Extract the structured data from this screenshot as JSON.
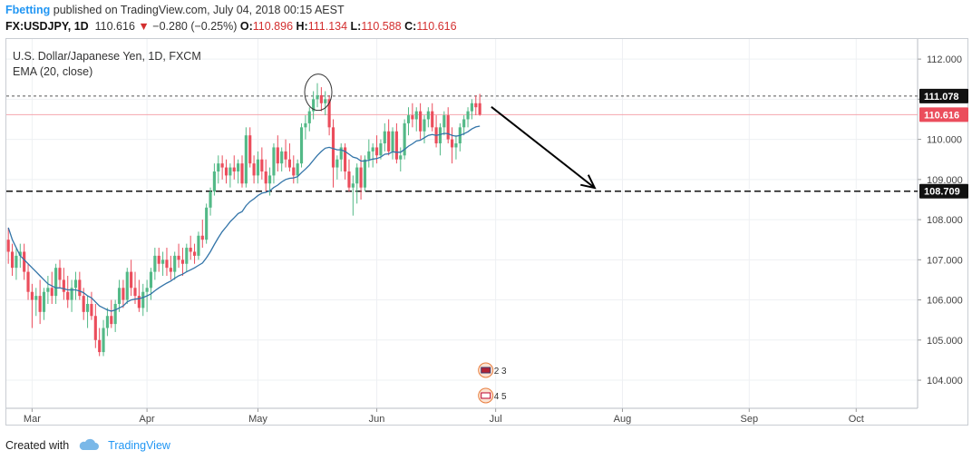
{
  "header": {
    "author": "Fbetting",
    "published": "published on TradingView.com, July 04, 2018 00:15 AEST"
  },
  "quote": {
    "symbol": "FX:USDJPY, 1D",
    "last": "110.616",
    "change_arrow": "▼",
    "change": "−0.280 (−0.25%)",
    "open_label": "O:",
    "open": "110.896",
    "high_label": "H:",
    "high": "111.134",
    "low_label": "L:",
    "low": "110.588",
    "close_label": "C:",
    "close": "110.616"
  },
  "legend": {
    "title": "U.S. Dollar/Japanese Yen, 1D, FXCM",
    "indicator": "EMA (20, close)"
  },
  "footer": {
    "created_with": "Created with",
    "brand": "TradingView",
    "brand_icon": "cloud-icon"
  },
  "colors": {
    "up": "#53b987",
    "down": "#eb4d5c",
    "ema": "#3274a8",
    "resistance": "#555555",
    "last_price_line": "#f4a6ae",
    "last_price_badge": "#eb4d5c",
    "axis_badge_dark": "#111111",
    "event_badge": "#e87d3e"
  },
  "chart_data": {
    "type": "candlestick",
    "symbol": "USDJPY",
    "timeframe": "1D",
    "ylim": [
      103.3,
      112.5
    ],
    "y_ticks": [
      104.0,
      105.0,
      106.0,
      107.0,
      108.0,
      109.0,
      110.0,
      111.0,
      112.0
    ],
    "y_tick_labels": [
      "104.000",
      "105.000",
      "106.000",
      "107.000",
      "108.000",
      "109.000",
      "110.000",
      "111.000",
      "112.000"
    ],
    "x_tick_labels": [
      "Mar",
      "Apr",
      "May",
      "Jun",
      "Jul",
      "Aug",
      "Sep",
      "Oct"
    ],
    "x_tick_bar_index": [
      6,
      35,
      63,
      93,
      123,
      155,
      187,
      214
    ],
    "bar_count_total": 230,
    "candles": [
      [
        107.5,
        107.8,
        106.9,
        107.2
      ],
      [
        107.2,
        107.4,
        106.6,
        106.8
      ],
      [
        106.8,
        107.3,
        106.5,
        107.1
      ],
      [
        107.1,
        107.4,
        106.8,
        107.2
      ],
      [
        107.2,
        107.4,
        106.5,
        106.7
      ],
      [
        106.7,
        106.9,
        106.0,
        106.2
      ],
      [
        106.2,
        106.4,
        105.3,
        106.0
      ],
      [
        106.0,
        106.3,
        105.6,
        106.1
      ],
      [
        106.1,
        106.5,
        105.4,
        105.7
      ],
      [
        105.7,
        106.3,
        105.5,
        106.2
      ],
      [
        106.2,
        106.6,
        105.9,
        106.3
      ],
      [
        106.3,
        106.7,
        105.9,
        106.1
      ],
      [
        106.1,
        106.9,
        105.9,
        106.8
      ],
      [
        106.8,
        107.0,
        106.3,
        106.5
      ],
      [
        106.5,
        106.8,
        106.0,
        106.2
      ],
      [
        106.2,
        106.6,
        105.8,
        106.0
      ],
      [
        106.0,
        106.5,
        105.7,
        106.3
      ],
      [
        106.3,
        106.7,
        106.0,
        106.5
      ],
      [
        106.5,
        106.7,
        106.0,
        106.1
      ],
      [
        106.1,
        106.3,
        105.5,
        105.7
      ],
      [
        105.7,
        106.1,
        105.3,
        105.9
      ],
      [
        105.9,
        106.2,
        105.5,
        105.6
      ],
      [
        105.6,
        105.9,
        104.8,
        105.0
      ],
      [
        105.0,
        105.3,
        104.6,
        104.7
      ],
      [
        104.7,
        105.5,
        104.6,
        105.3
      ],
      [
        105.3,
        105.8,
        105.1,
        105.6
      ],
      [
        105.6,
        106.0,
        105.3,
        105.4
      ],
      [
        105.4,
        106.0,
        105.2,
        105.9
      ],
      [
        105.9,
        106.5,
        105.7,
        106.3
      ],
      [
        106.3,
        106.5,
        105.8,
        106.0
      ],
      [
        106.0,
        106.8,
        105.9,
        106.7
      ],
      [
        106.7,
        107.0,
        106.1,
        106.3
      ],
      [
        106.3,
        106.7,
        105.9,
        106.1
      ],
      [
        106.1,
        106.5,
        105.7,
        105.8
      ],
      [
        105.8,
        106.4,
        105.6,
        106.2
      ],
      [
        106.2,
        106.5,
        105.7,
        106.3
      ],
      [
        106.3,
        106.8,
        106.0,
        106.7
      ],
      [
        106.7,
        107.3,
        106.5,
        107.1
      ],
      [
        107.1,
        107.3,
        106.7,
        106.9
      ],
      [
        106.9,
        107.2,
        106.6,
        107.0
      ],
      [
        107.0,
        107.3,
        106.6,
        106.8
      ],
      [
        106.8,
        107.1,
        106.5,
        106.7
      ],
      [
        106.7,
        107.2,
        106.5,
        107.1
      ],
      [
        107.1,
        107.4,
        106.8,
        107.0
      ],
      [
        107.0,
        107.3,
        106.6,
        106.9
      ],
      [
        106.9,
        107.4,
        106.7,
        107.3
      ],
      [
        107.3,
        107.6,
        107.0,
        107.2
      ],
      [
        107.2,
        107.4,
        106.9,
        107.1
      ],
      [
        107.1,
        107.7,
        107.0,
        107.6
      ],
      [
        107.6,
        108.0,
        107.3,
        107.5
      ],
      [
        107.5,
        108.4,
        107.4,
        108.3
      ],
      [
        108.3,
        108.8,
        108.1,
        108.7
      ],
      [
        108.7,
        109.4,
        108.6,
        109.2
      ],
      [
        109.2,
        109.6,
        108.9,
        109.4
      ],
      [
        109.4,
        109.6,
        109.0,
        109.3
      ],
      [
        109.3,
        109.5,
        108.9,
        109.1
      ],
      [
        109.1,
        109.4,
        108.8,
        109.3
      ],
      [
        109.3,
        109.6,
        109.0,
        109.2
      ],
      [
        109.2,
        109.5,
        108.9,
        109.4
      ],
      [
        109.4,
        109.6,
        108.8,
        108.9
      ],
      [
        108.9,
        110.3,
        108.8,
        110.1
      ],
      [
        110.1,
        110.3,
        109.3,
        109.4
      ],
      [
        109.4,
        109.6,
        108.9,
        109.1
      ],
      [
        109.1,
        109.7,
        108.9,
        109.5
      ],
      [
        109.5,
        109.8,
        109.0,
        109.2
      ],
      [
        109.2,
        109.5,
        108.7,
        108.9
      ],
      [
        108.9,
        109.3,
        108.6,
        109.1
      ],
      [
        109.1,
        109.9,
        108.9,
        109.8
      ],
      [
        109.8,
        110.1,
        109.2,
        109.4
      ],
      [
        109.4,
        109.8,
        109.2,
        109.7
      ],
      [
        109.7,
        110.0,
        109.3,
        109.5
      ],
      [
        109.5,
        109.9,
        109.2,
        109.3
      ],
      [
        109.3,
        109.6,
        108.9,
        109.1
      ],
      [
        109.1,
        109.5,
        108.9,
        109.4
      ],
      [
        109.4,
        110.4,
        109.3,
        110.3
      ],
      [
        110.3,
        110.6,
        110.0,
        110.4
      ],
      [
        110.4,
        110.8,
        110.2,
        110.7
      ],
      [
        110.7,
        111.2,
        110.5,
        111.0
      ],
      [
        111.0,
        111.4,
        110.8,
        111.1
      ],
      [
        111.1,
        111.3,
        110.7,
        110.9
      ],
      [
        110.9,
        111.2,
        110.6,
        111.0
      ],
      [
        111.0,
        111.1,
        110.1,
        110.3
      ],
      [
        110.3,
        110.5,
        108.8,
        109.3
      ],
      [
        109.3,
        109.6,
        109.0,
        109.5
      ],
      [
        109.5,
        109.9,
        109.2,
        109.8
      ],
      [
        109.8,
        109.9,
        109.0,
        109.2
      ],
      [
        109.2,
        109.5,
        108.7,
        108.8
      ],
      [
        108.8,
        109.1,
        108.1,
        108.9
      ],
      [
        108.9,
        109.4,
        108.4,
        109.3
      ],
      [
        109.3,
        109.6,
        108.5,
        108.8
      ],
      [
        108.8,
        109.6,
        108.7,
        109.5
      ],
      [
        109.5,
        110.0,
        109.3,
        109.7
      ],
      [
        109.7,
        109.9,
        109.3,
        109.8
      ],
      [
        109.8,
        110.1,
        109.4,
        109.6
      ],
      [
        109.6,
        110.0,
        109.5,
        109.9
      ],
      [
        109.9,
        110.4,
        109.7,
        110.2
      ],
      [
        110.2,
        110.5,
        109.6,
        109.7
      ],
      [
        109.7,
        110.3,
        109.5,
        110.2
      ],
      [
        110.2,
        110.4,
        109.4,
        109.5
      ],
      [
        109.5,
        109.8,
        109.2,
        109.6
      ],
      [
        109.6,
        110.5,
        109.5,
        110.4
      ],
      [
        110.4,
        110.8,
        110.1,
        110.6
      ],
      [
        110.6,
        110.9,
        110.3,
        110.5
      ],
      [
        110.5,
        110.8,
        110.2,
        110.7
      ],
      [
        110.7,
        110.9,
        110.0,
        110.2
      ],
      [
        110.2,
        110.6,
        109.9,
        110.5
      ],
      [
        110.5,
        110.8,
        110.3,
        110.7
      ],
      [
        110.7,
        110.9,
        110.2,
        110.3
      ],
      [
        110.3,
        110.6,
        109.8,
        109.9
      ],
      [
        109.9,
        110.4,
        109.6,
        110.3
      ],
      [
        110.3,
        110.7,
        110.1,
        110.6
      ],
      [
        110.6,
        110.8,
        109.9,
        110.0
      ],
      [
        110.0,
        110.3,
        109.4,
        109.8
      ],
      [
        109.8,
        110.1,
        109.5,
        109.9
      ],
      [
        109.9,
        110.4,
        109.7,
        110.3
      ],
      [
        110.3,
        110.6,
        110.1,
        110.5
      ],
      [
        110.5,
        110.8,
        110.3,
        110.7
      ],
      [
        110.7,
        111.0,
        110.5,
        110.9
      ],
      [
        110.9,
        111.1,
        110.6,
        110.8
      ],
      [
        110.9,
        111.134,
        110.588,
        110.616
      ]
    ],
    "ema_20": [
      107.8,
      107.5,
      107.3,
      107.1,
      107.0,
      106.9,
      106.8,
      106.7,
      106.6,
      106.5,
      106.4,
      106.35,
      106.3,
      106.3,
      106.28,
      106.25,
      106.25,
      106.25,
      106.22,
      106.18,
      106.1,
      106.05,
      105.95,
      105.85,
      105.8,
      105.75,
      105.72,
      105.75,
      105.8,
      105.85,
      105.95,
      106.0,
      106.02,
      106.03,
      106.06,
      106.1,
      106.15,
      106.23,
      106.3,
      106.36,
      106.42,
      106.47,
      106.54,
      106.6,
      106.64,
      106.7,
      106.75,
      106.8,
      106.86,
      106.92,
      107.05,
      107.2,
      107.38,
      107.55,
      107.7,
      107.82,
      107.95,
      108.05,
      108.15,
      108.2,
      108.35,
      108.45,
      108.52,
      108.6,
      108.66,
      108.68,
      108.72,
      108.8,
      108.86,
      108.94,
      109.0,
      109.03,
      109.04,
      109.07,
      109.17,
      109.26,
      109.36,
      109.48,
      109.6,
      109.7,
      109.78,
      109.8,
      109.77,
      109.74,
      109.74,
      109.7,
      109.63,
      109.56,
      109.53,
      109.46,
      109.46,
      109.48,
      109.51,
      109.52,
      109.56,
      109.63,
      109.64,
      109.69,
      109.68,
      109.68,
      109.75,
      109.83,
      109.89,
      109.96,
      109.98,
      110.04,
      110.1,
      110.12,
      110.1,
      110.12,
      110.15,
      110.14,
      110.1,
      110.08,
      110.1,
      110.14,
      110.19,
      110.26,
      110.31,
      110.33
    ],
    "resistance_level": 111.078,
    "support_level": 108.709,
    "last_price": 110.616,
    "price_badges": {
      "resistance": "111.078",
      "last": "110.616",
      "support": "108.709"
    },
    "annotations": {
      "projection_arrow": {
        "from_bar": 121,
        "from_price": 110.9,
        "to_bar": 148,
        "to_price": 108.7
      },
      "circle_bar": 78,
      "event_badges": [
        {
          "label": "2  3"
        },
        {
          "label": "4 5"
        }
      ]
    },
    "grid": true,
    "legend_position": "top-left"
  }
}
